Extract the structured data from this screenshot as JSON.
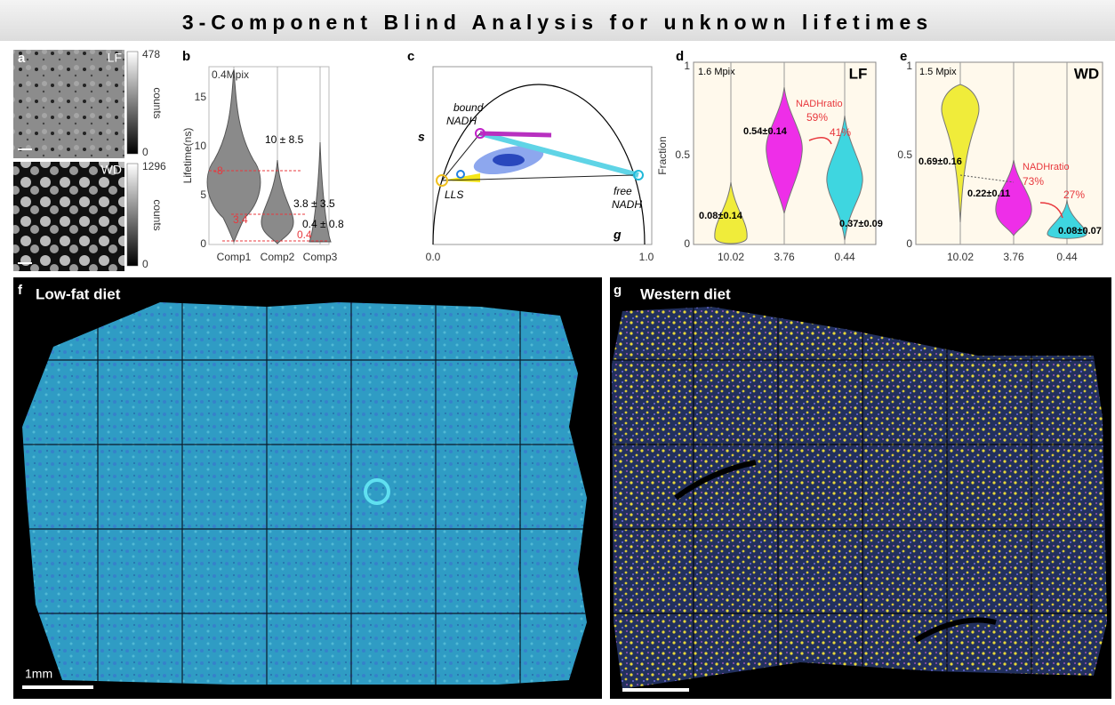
{
  "title": "3-Component Blind Analysis for unknown lifetimes",
  "panel_a": {
    "label": "a",
    "images": [
      {
        "tag": "LF",
        "colorbar_max": "478",
        "colorbar_min": "0",
        "colorbar_label": "counts"
      },
      {
        "tag": "WD",
        "colorbar_max": "1296",
        "colorbar_min": "0",
        "colorbar_label": "counts"
      }
    ]
  },
  "panel_b": {
    "label": "b",
    "note": "0.4Mpix",
    "ylabel": "Lifetime(ns)",
    "yticks": [
      "0",
      "5",
      "10",
      "15"
    ],
    "categories": [
      "Comp1",
      "Comp2",
      "Comp3"
    ],
    "annotations": [
      "10 ± 8.5",
      "3.8 ± 3.5",
      "0.4 ± 0.8"
    ],
    "medians": [
      "-8",
      "3.4",
      "0.4"
    ]
  },
  "panel_c": {
    "label": "c",
    "ylabel": "s",
    "xlabel": "g",
    "xticks": [
      "0.0",
      "1.0"
    ],
    "annotations": [
      "bound",
      "NADH",
      "LLS",
      "free",
      "NADH"
    ]
  },
  "panel_d": {
    "label": "d",
    "tag": "LF",
    "note": "1.6 Mpix",
    "ylabel": "Fraction",
    "yticks": [
      "0",
      "0.5",
      "1"
    ],
    "categories": [
      "10.02",
      "3.76",
      "0.44"
    ],
    "value_labels": [
      "0.08±0.14",
      "0.54±0.14",
      "0.37±0.09"
    ],
    "ratio_label": "NADHratio",
    "ratios": [
      "59%",
      "41%"
    ]
  },
  "panel_e": {
    "label": "e",
    "tag": "WD",
    "note": "1.5 Mpix",
    "yticks": [
      "0",
      "0.5",
      "1"
    ],
    "categories": [
      "10.02",
      "3.76",
      "0.44"
    ],
    "value_labels": [
      "0.69±0.16",
      "0.22±0.11",
      "0.08±0.07"
    ],
    "ratio_label": "NADHratio",
    "ratios": [
      "73%",
      "27%"
    ]
  },
  "panel_f": {
    "label": "f",
    "title": "Low-fat diet",
    "scale_bar": "1mm"
  },
  "panel_g": {
    "label": "g",
    "title": "Western diet"
  }
}
